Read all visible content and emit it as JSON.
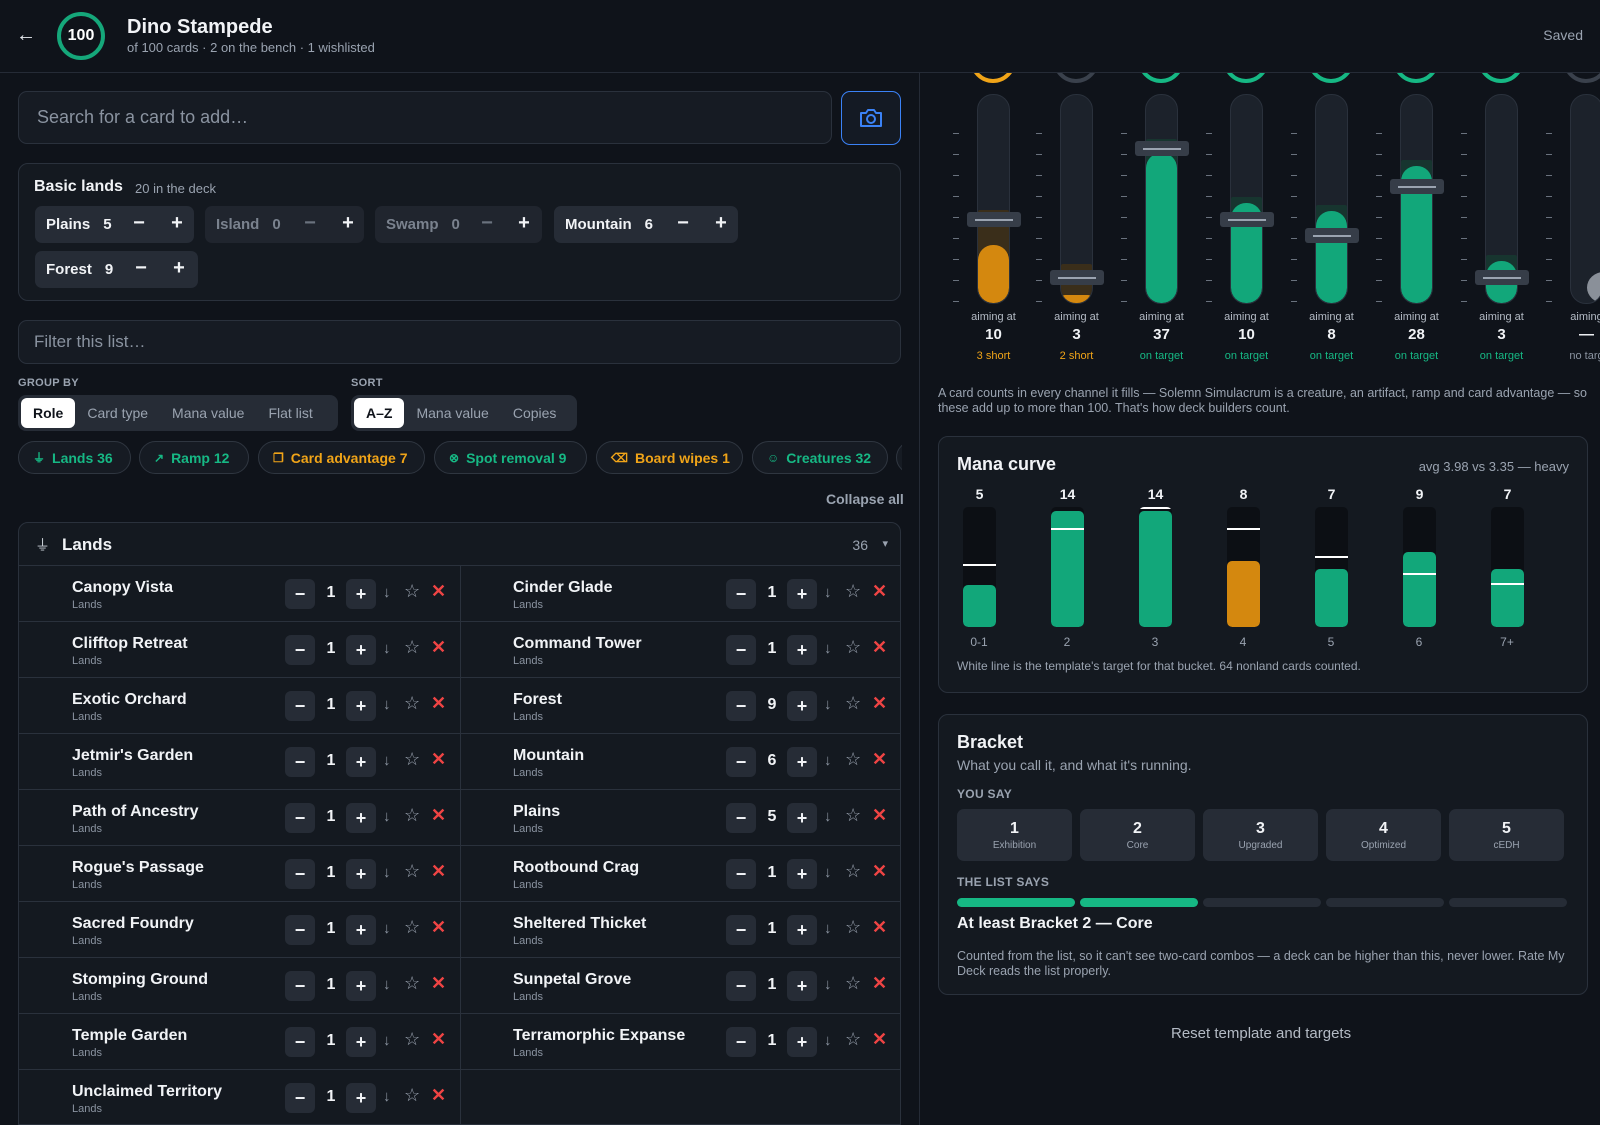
{
  "header": {
    "back": "←",
    "count": "100",
    "title": "Dino Stampede",
    "subtitle": "of 100 cards · 2 on the bench · 1 wishlisted",
    "saved": "Saved"
  },
  "search": {
    "placeholder": "Search for a card to add…"
  },
  "basic_lands": {
    "title": "Basic lands",
    "subtitle": "20 in the deck",
    "items": [
      {
        "name": "Plains",
        "count": "5"
      },
      {
        "name": "Island",
        "count": "0"
      },
      {
        "name": "Swamp",
        "count": "0"
      },
      {
        "name": "Mountain",
        "count": "6"
      },
      {
        "name": "Forest",
        "count": "9"
      }
    ],
    "minus": "−",
    "plus": "+"
  },
  "filter": {
    "placeholder": "Filter this list…"
  },
  "group_by": {
    "label": "GROUP BY",
    "options": [
      "Role",
      "Card type",
      "Mana value",
      "Flat list"
    ],
    "selected": "Role"
  },
  "sort": {
    "label": "SORT",
    "options": [
      "A–Z",
      "Mana value",
      "Copies"
    ],
    "selected": "A–Z"
  },
  "roles": [
    {
      "label": "Lands 36",
      "icon": "land-icon",
      "color": "#16b884"
    },
    {
      "label": "Ramp 12",
      "icon": "ramp-trend-icon",
      "color": "#16b884"
    },
    {
      "label": "Card advantage 7",
      "icon": "cards-icon",
      "color": "#f0a418"
    },
    {
      "label": "Spot removal 9",
      "icon": "target-x-icon",
      "color": "#16b884"
    },
    {
      "label": "Board wipes 1",
      "icon": "broom-icon",
      "color": "#f0a418"
    },
    {
      "label": "Creatures 32",
      "icon": "person-icon",
      "color": "#16b884"
    }
  ],
  "collapse_all": "Collapse all",
  "group": {
    "title": "Lands",
    "count": "36",
    "caret": "▾",
    "cards": [
      {
        "name": "Canopy Vista",
        "type": "Lands",
        "qty": "1"
      },
      {
        "name": "Cinder Glade",
        "type": "Lands",
        "qty": "1"
      },
      {
        "name": "Clifftop Retreat",
        "type": "Lands",
        "qty": "1"
      },
      {
        "name": "Command Tower",
        "type": "Lands",
        "qty": "1"
      },
      {
        "name": "Exotic Orchard",
        "type": "Lands",
        "qty": "1"
      },
      {
        "name": "Forest",
        "type": "Lands",
        "qty": "9"
      },
      {
        "name": "Jetmir's Garden",
        "type": "Lands",
        "qty": "1"
      },
      {
        "name": "Mountain",
        "type": "Lands",
        "qty": "6"
      },
      {
        "name": "Path of Ancestry",
        "type": "Lands",
        "qty": "1"
      },
      {
        "name": "Plains",
        "type": "Lands",
        "qty": "5"
      },
      {
        "name": "Rogue's Passage",
        "type": "Lands",
        "qty": "1"
      },
      {
        "name": "Rootbound Crag",
        "type": "Lands",
        "qty": "1"
      },
      {
        "name": "Sacred Foundry",
        "type": "Lands",
        "qty": "1"
      },
      {
        "name": "Sheltered Thicket",
        "type": "Lands",
        "qty": "1"
      },
      {
        "name": "Stomping Ground",
        "type": "Lands",
        "qty": "1"
      },
      {
        "name": "Sunpetal Grove",
        "type": "Lands",
        "qty": "1"
      },
      {
        "name": "Temple Garden",
        "type": "Lands",
        "qty": "1"
      },
      {
        "name": "Terramorphic Expanse",
        "type": "Lands",
        "qty": "1"
      },
      {
        "name": "Unclaimed Territory",
        "type": "Lands",
        "qty": "1"
      }
    ]
  },
  "channels": [
    {
      "aim_label": "aiming at",
      "target": "10",
      "status": "3 short",
      "state": "short",
      "fill_fraction": 0.28,
      "target_fraction": 0.4
    },
    {
      "aim_label": "aiming at",
      "target": "3",
      "status": "2 short",
      "state": "short",
      "fill_fraction": 0.03,
      "target_fraction": 0.12
    },
    {
      "aim_label": "aiming at",
      "target": "37",
      "status": "on target",
      "state": "ok",
      "fill_fraction": 0.72,
      "target_fraction": 0.74
    },
    {
      "aim_label": "aiming at",
      "target": "10",
      "status": "on target",
      "state": "ok",
      "fill_fraction": 0.48,
      "target_fraction": 0.4
    },
    {
      "aim_label": "aiming at",
      "target": "8",
      "status": "on target",
      "state": "ok",
      "fill_fraction": 0.44,
      "target_fraction": 0.32
    },
    {
      "aim_label": "aiming at",
      "target": "28",
      "status": "on target",
      "state": "ok",
      "fill_fraction": 0.66,
      "target_fraction": 0.56
    },
    {
      "aim_label": "aiming at",
      "target": "3",
      "status": "on target",
      "state": "ok",
      "fill_fraction": 0.2,
      "target_fraction": 0.12
    },
    {
      "aim_label": "aiming",
      "target": "—",
      "status": "no targ",
      "state": "none",
      "fill_fraction": 0.15,
      "target_fraction": null
    }
  ],
  "channels_note": "A card counts in every channel it fills — Solemn Simulacrum is a creature, an artifact, ramp and card advantage — so these add up to more than 100. That's how deck builders count.",
  "mana_curve": {
    "title": "Mana curve",
    "avg": "avg 3.98 vs 3.35 — heavy",
    "footnote": "White line is the template's target for that bucket. 64 nonland cards counted."
  },
  "chart_data": {
    "type": "bar",
    "title": "Mana curve",
    "categories": [
      "0-1",
      "2",
      "3",
      "4",
      "5",
      "6",
      "7+"
    ],
    "values": [
      5,
      14,
      14,
      8,
      7,
      9,
      7
    ],
    "targets": [
      7.3,
      11.7,
      14.2,
      11.7,
      8.3,
      6.3,
      5.1
    ],
    "ylim": [
      0,
      14.2
    ],
    "colors": [
      "#12a77a",
      "#12a77a",
      "#12a77a",
      "#d4880f",
      "#12a77a",
      "#12a77a",
      "#12a77a"
    ]
  },
  "bracket": {
    "title": "Bracket",
    "subtitle": "What you call it, and what it's running.",
    "you_say_label": "YOU SAY",
    "options": [
      {
        "num": "1",
        "label": "Exhibition"
      },
      {
        "num": "2",
        "label": "Core"
      },
      {
        "num": "3",
        "label": "Upgraded"
      },
      {
        "num": "4",
        "label": "Optimized"
      },
      {
        "num": "5",
        "label": "cEDH"
      }
    ],
    "list_says_label": "THE LIST SAYS",
    "list_level": 2,
    "result": "At least Bracket 2 — Core",
    "note": "Counted from the list, so it can't see two-card combos — a deck can be higher than this, never lower. Rate My Deck reads the list properly."
  },
  "reset": "Reset template and targets",
  "colors": {
    "accent_green": "#16b884",
    "accent_orange": "#f0a418",
    "danger": "#ef4444",
    "focus_blue": "#3b82f6"
  }
}
